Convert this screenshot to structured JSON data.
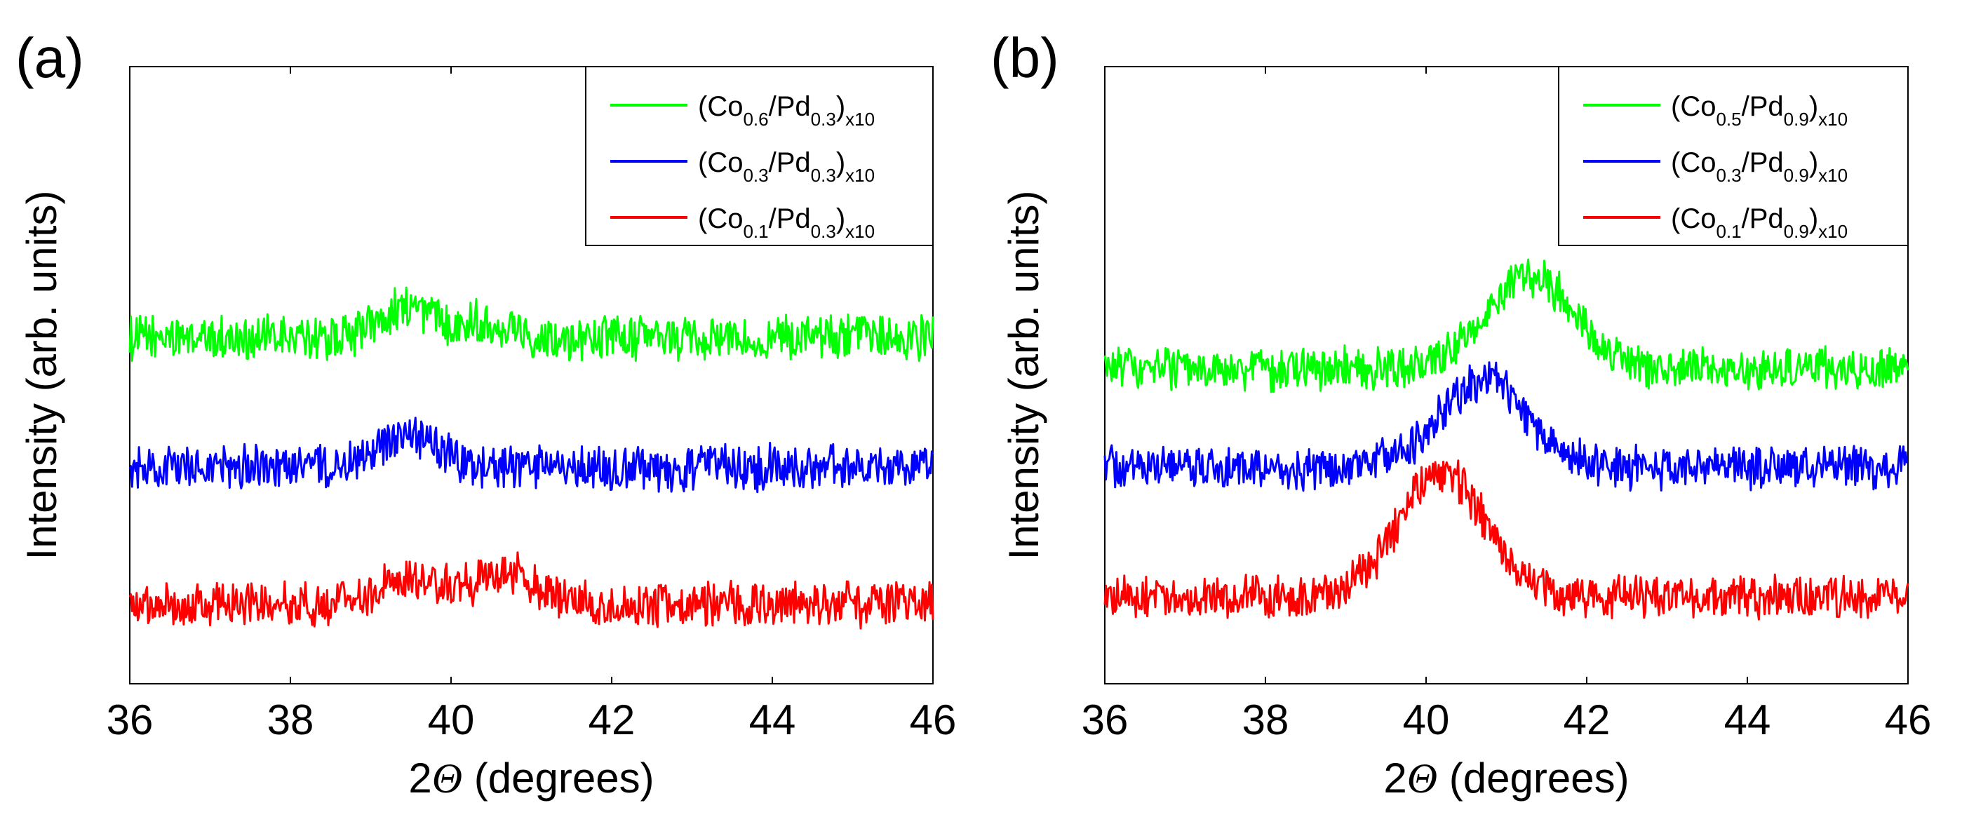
{
  "chart_data": [
    {
      "type": "line",
      "panel_label": "(a)",
      "xlabel_prefix": "2",
      "xlabel_symbol": "Θ",
      "xlabel_units": " (degrees)",
      "ylabel": "Intensity (arb. units)",
      "xlim": [
        36,
        46
      ],
      "ylim": [
        0,
        100
      ],
      "x_ticks": [
        36,
        38,
        40,
        42,
        44,
        46
      ],
      "y_ticks_visible": false,
      "legend_position": "top-right",
      "series": [
        {
          "label_base": "(Co",
          "sub1": "0.6",
          "label_mid": "/Pd",
          "sub2": "0.3",
          "label_end": ")",
          "sub3": "x10",
          "color": "#00ff00",
          "baseline": 56,
          "noise": 3.2,
          "peaks": [
            {
              "center": 39.45,
              "height": 5,
              "width": 0.35
            },
            {
              "center": 40.4,
              "height": 2.5,
              "width": 0.35
            }
          ]
        },
        {
          "label_base": "(Co",
          "sub1": "0.3",
          "label_mid": "/Pd",
          "sub2": "0.3",
          "label_end": ")",
          "sub3": "x10",
          "color": "#0000ff",
          "baseline": 35,
          "noise": 3.2,
          "peaks": [
            {
              "center": 39.5,
              "height": 5,
              "width": 0.35
            }
          ]
        },
        {
          "label_base": "(Co",
          "sub1": "0.1",
          "label_mid": "/Pd",
          "sub2": "0.3",
          "label_end": ")",
          "sub3": "x10",
          "color": "#ff0000",
          "baseline": 13,
          "noise": 3.2,
          "peaks": [
            {
              "center": 39.5,
              "height": 4,
              "width": 0.45
            },
            {
              "center": 40.7,
              "height": 5,
              "width": 0.35
            }
          ]
        }
      ]
    },
    {
      "type": "line",
      "panel_label": "(b)",
      "xlabel_prefix": "2",
      "xlabel_symbol": "Θ",
      "xlabel_units": " (degrees)",
      "ylabel": "Intensity (arb. units)",
      "xlim": [
        36,
        46
      ],
      "ylim": [
        0,
        100
      ],
      "x_ticks": [
        36,
        38,
        40,
        42,
        44,
        46
      ],
      "y_ticks_visible": false,
      "legend_position": "top-right",
      "series": [
        {
          "label_base": "(Co",
          "sub1": "0.5",
          "label_mid": "/Pd",
          "sub2": "0.9",
          "label_end": ")",
          "sub3": "x10",
          "color": "#00ff00",
          "baseline": 51,
          "noise": 3.0,
          "peaks": [
            {
              "center": 41.3,
              "height": 15,
              "width": 0.55
            }
          ]
        },
        {
          "label_base": "(Co",
          "sub1": "0.3",
          "label_mid": "/Pd",
          "sub2": "0.9",
          "label_end": ")",
          "sub3": "x10",
          "color": "#0000ff",
          "baseline": 35,
          "noise": 3.0,
          "peaks": [
            {
              "center": 40.7,
              "height": 14,
              "width": 0.55
            }
          ]
        },
        {
          "label_base": "(Co",
          "sub1": "0.1",
          "label_mid": "/Pd",
          "sub2": "0.9",
          "label_end": ")",
          "sub3": "x10",
          "color": "#ff0000",
          "baseline": 14,
          "noise": 3.0,
          "peaks": [
            {
              "center": 40.2,
              "height": 20,
              "width": 0.55
            }
          ]
        }
      ]
    }
  ]
}
